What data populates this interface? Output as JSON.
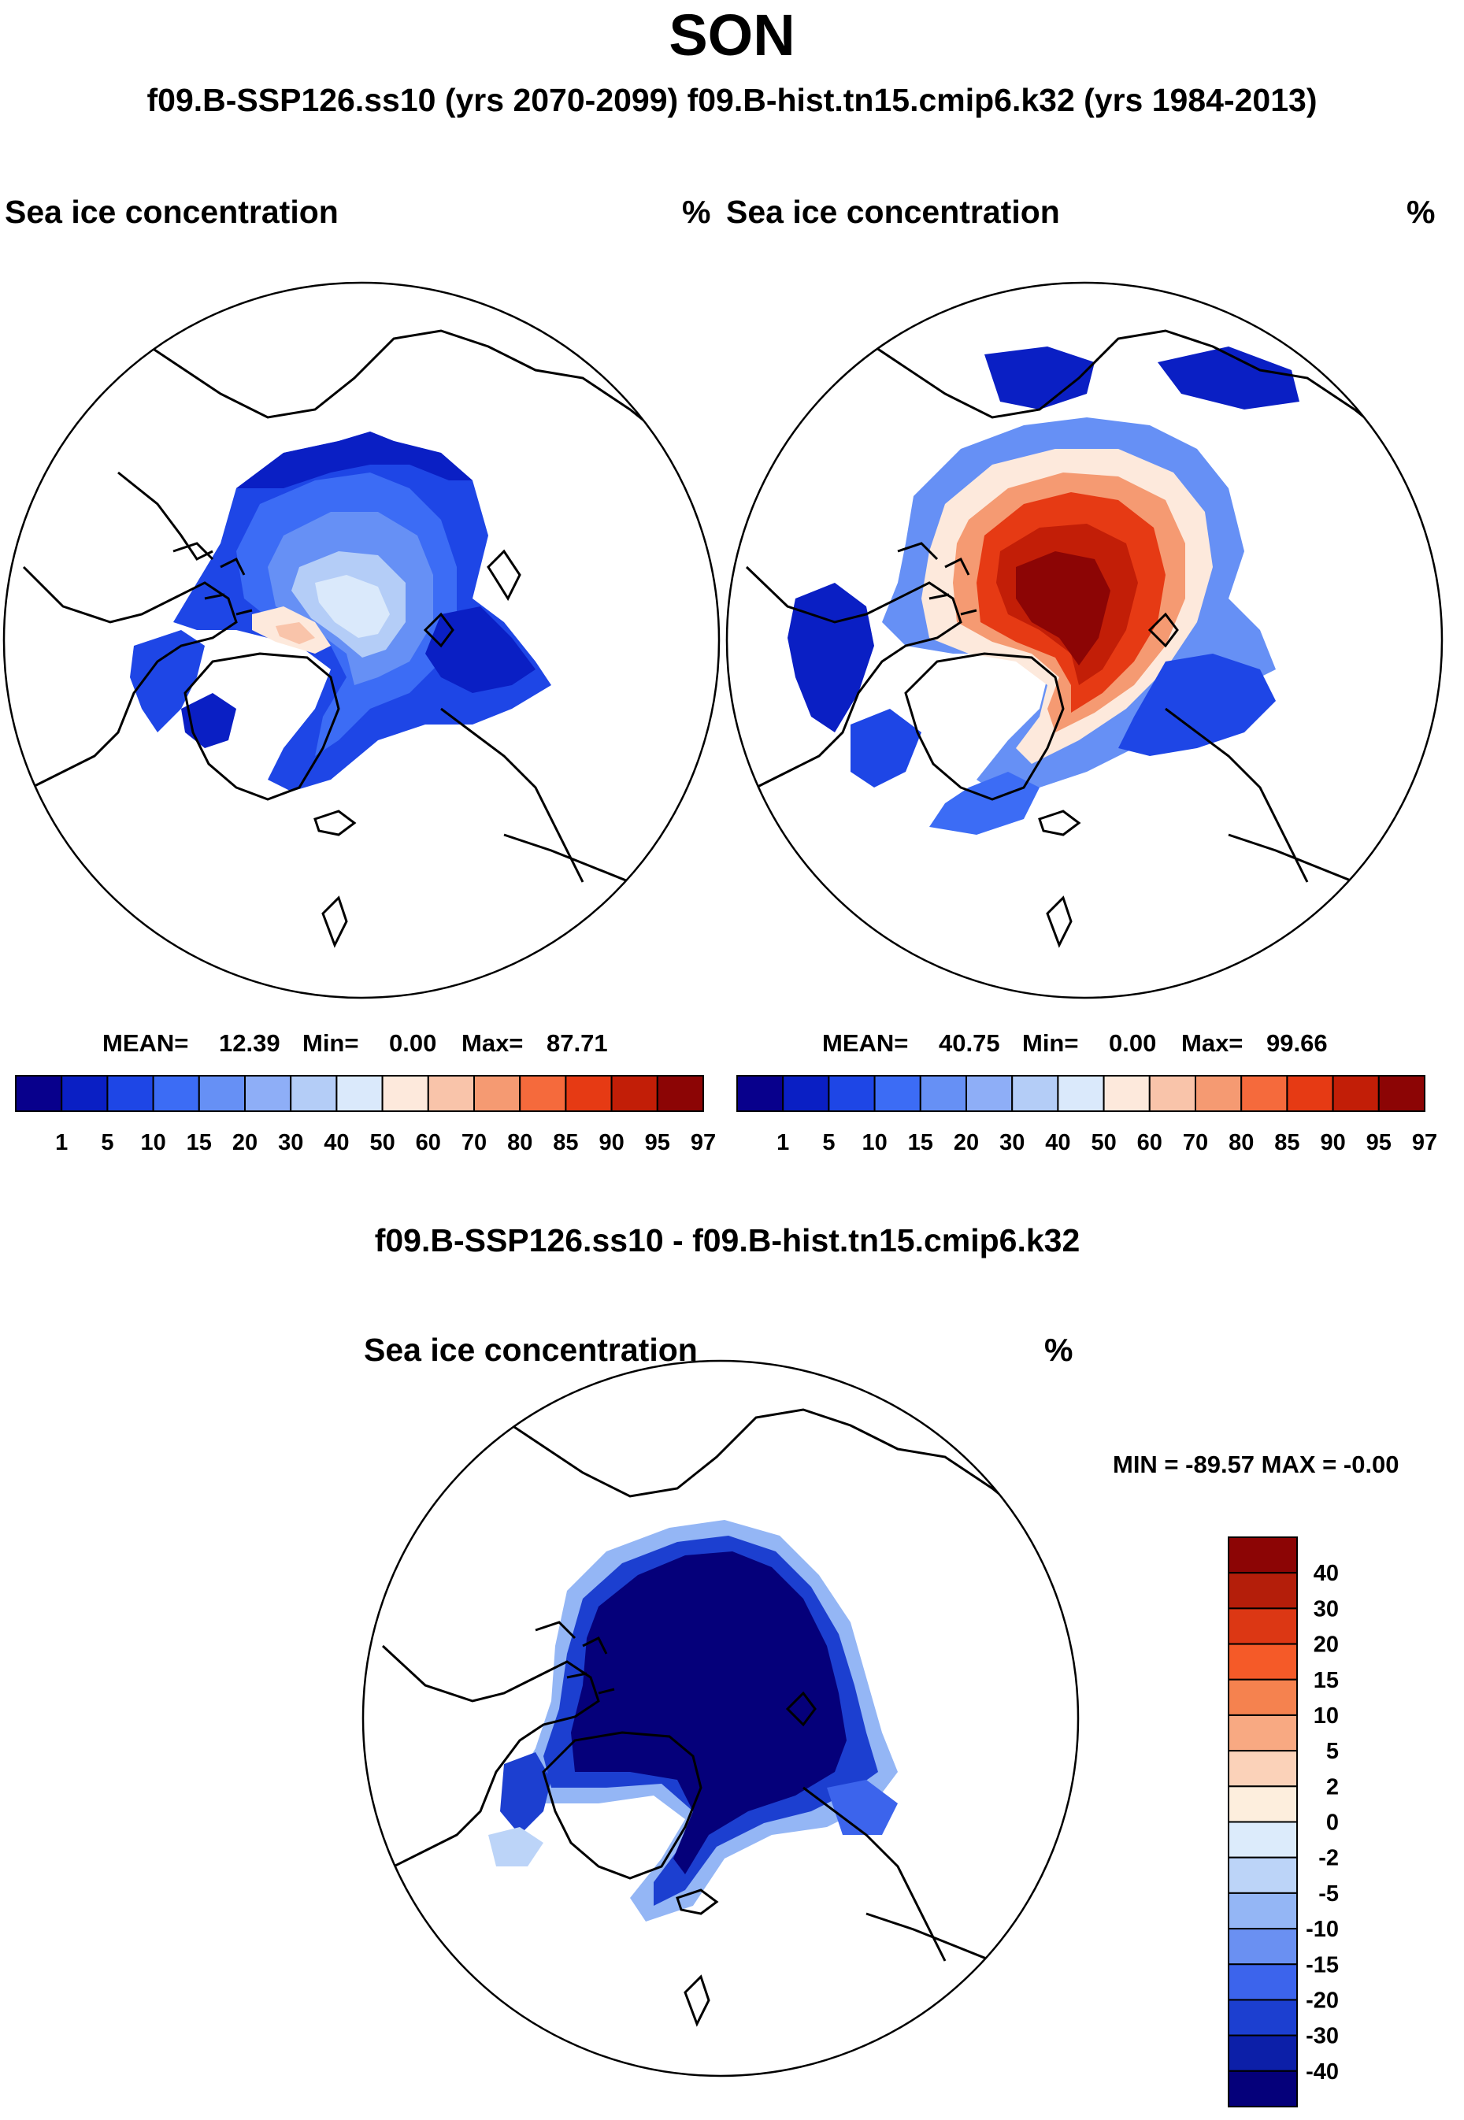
{
  "figure": {
    "season": "SON",
    "subtitle": "f09.B-SSP126.ss10 (yrs 2070-2099)  f09.B-hist.tn15.cmip6.k32 (yrs 1984-2013)",
    "diff_title": "f09.B-SSP126.ss10 - f09.B-hist.tn15.cmip6.k32"
  },
  "chart_data": [
    {
      "type": "heatmap",
      "projection": "north-polar-stereographic",
      "case": "f09.B-SSP126.ss10",
      "years": "2070-2099",
      "variable_label": "Sea ice concentration",
      "units": "%",
      "mean_label": "MEAN=",
      "mean": "12.39",
      "min_label": "Min=",
      "min": "0.00",
      "max_label": "Max=",
      "max": "87.71",
      "colorbar_levels": [
        "1",
        "5",
        "10",
        "15",
        "20",
        "30",
        "40",
        "50",
        "60",
        "70",
        "80",
        "85",
        "90",
        "95",
        "97"
      ],
      "colorbar_colors": [
        "#08008c",
        "#0a1fc4",
        "#1e46e6",
        "#3c6cf5",
        "#6690f5",
        "#8eaef7",
        "#b4cdf7",
        "#dae9fb",
        "#fde9dc",
        "#f9c4aa",
        "#f59a72",
        "#f56a3c",
        "#e63a14",
        "#c21e07",
        "#8c0505"
      ]
    },
    {
      "type": "heatmap",
      "projection": "north-polar-stereographic",
      "case": "f09.B-hist.tn15.cmip6.k32",
      "years": "1984-2013",
      "variable_label": "Sea ice concentration",
      "units": "%",
      "mean_label": "MEAN=",
      "mean": "40.75",
      "min_label": "Min=",
      "min": "0.00",
      "max_label": "Max=",
      "max": "99.66",
      "colorbar_levels": [
        "1",
        "5",
        "10",
        "15",
        "20",
        "30",
        "40",
        "50",
        "60",
        "70",
        "80",
        "85",
        "90",
        "95",
        "97"
      ],
      "colorbar_colors": [
        "#08008c",
        "#0a1fc4",
        "#1e46e6",
        "#3c6cf5",
        "#6690f5",
        "#8eaef7",
        "#b4cdf7",
        "#dae9fb",
        "#fde9dc",
        "#f9c4aa",
        "#f59a72",
        "#f56a3c",
        "#e63a14",
        "#c21e07",
        "#8c0505"
      ]
    },
    {
      "type": "heatmap",
      "projection": "north-polar-stereographic",
      "variable_label": "Sea ice concentration",
      "units": "%",
      "minmax_text": "MIN = -89.57 MAX =  -0.00",
      "min": -89.57,
      "max": -0.0,
      "colorbar_levels": [
        "40",
        "30",
        "20",
        "15",
        "10",
        "5",
        "2",
        "0",
        "-2",
        "-5",
        "-10",
        "-15",
        "-20",
        "-30",
        "-40"
      ],
      "colorbar_colors": [
        "#8c0505",
        "#b41e0a",
        "#dc3714",
        "#f55a28",
        "#f5824f",
        "#f8a982",
        "#fbd2b9",
        "#fdeedd",
        "#dcebfb",
        "#bcd4f8",
        "#94b6f5",
        "#6a90f2",
        "#3c64ec",
        "#1c3fd0",
        "#0c1fa8",
        "#05007a"
      ]
    }
  ]
}
